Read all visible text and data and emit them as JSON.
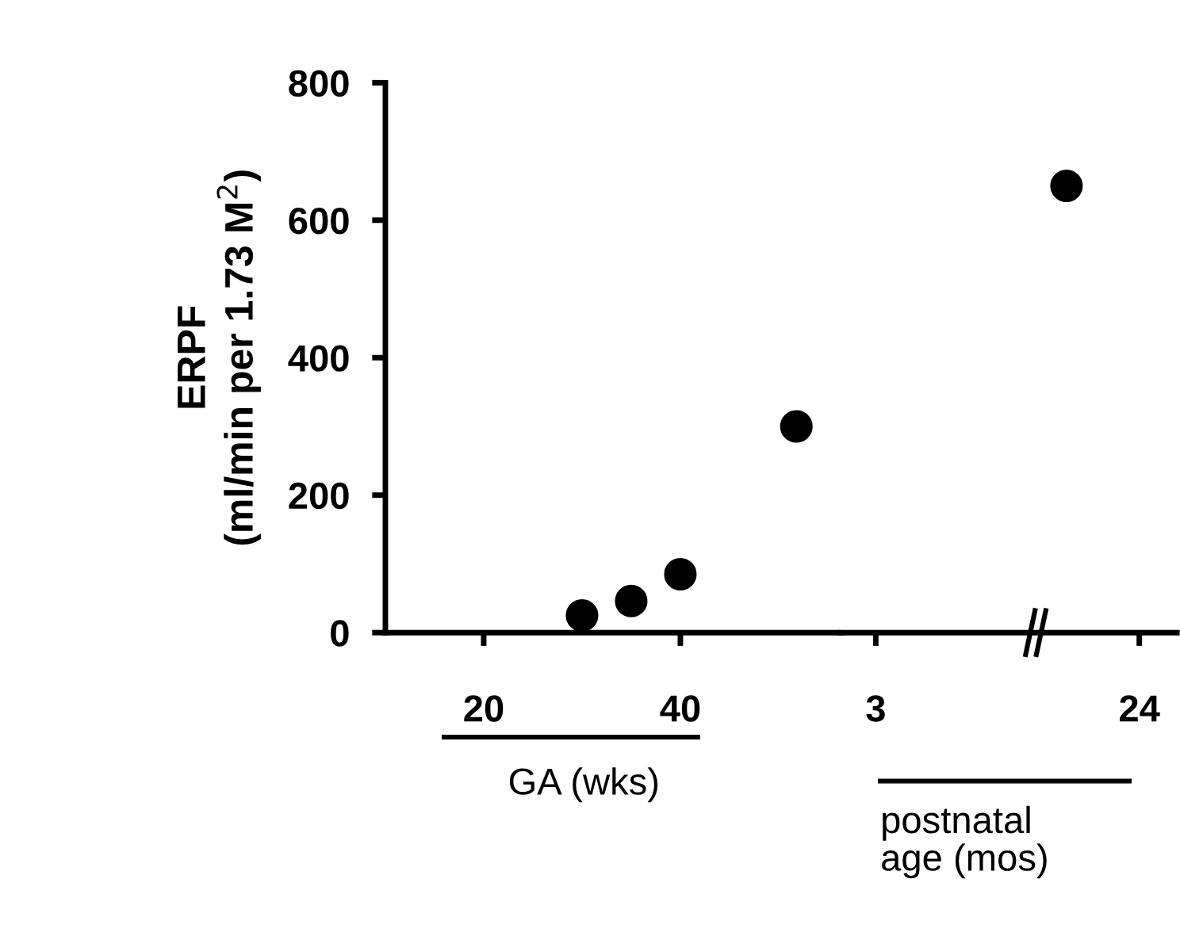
{
  "chart_data": [
    {
      "type": "scatter",
      "ylabel": "ERPF\n(ml/min per 1.73 M$^{2}$)",
      "x": [
        30,
        35,
        40,
        51.8
      ],
      "values": [
        25,
        46,
        85,
        300
      ],
      "color": "#000000",
      "marker": "circle",
      "xlim": [
        10,
        56.3
      ],
      "xticks": [
        20,
        40
      ],
      "ylim": [
        0,
        800
      ],
      "yticks": [
        0,
        200,
        400,
        600,
        800
      ],
      "grid": false,
      "legend": false,
      "annotations": [
        "GA (wks)"
      ]
    },
    {
      "type": "scatter",
      "x": [
        18.2
      ],
      "values": [
        650
      ],
      "color": "#000000",
      "marker": "circle",
      "xlim": [
        0.2,
        27
      ],
      "xticks": [
        3,
        24
      ],
      "ylim": [
        0,
        800
      ],
      "tick_labels": "x",
      "grid": false,
      "legend": false,
      "annotations": [
        "postnatal\nage (mos)"
      ]
    }
  ]
}
